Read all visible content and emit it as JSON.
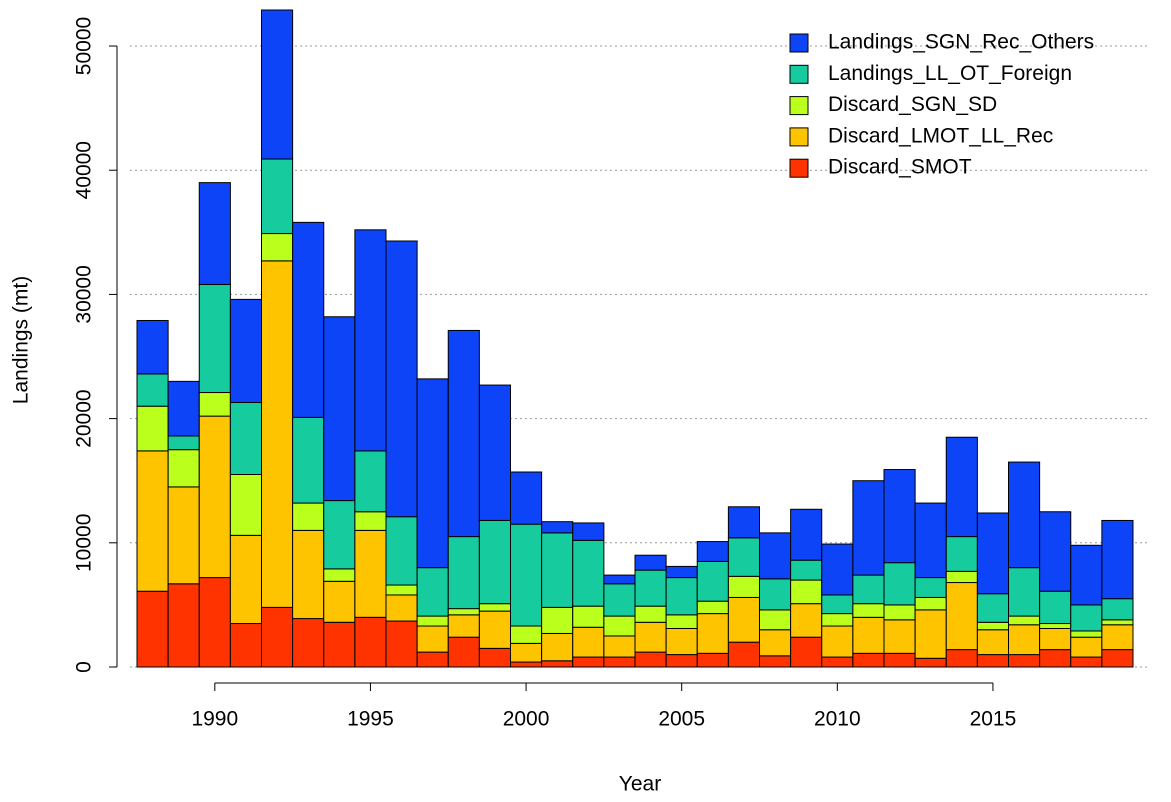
{
  "chart_data": {
    "type": "stacked_bar",
    "x_label": "Year",
    "y_label": "Landings (mt)",
    "x": [
      1988,
      1989,
      1990,
      1991,
      1992,
      1993,
      1994,
      1995,
      1996,
      1997,
      1998,
      1999,
      2000,
      2001,
      2002,
      2003,
      2004,
      2005,
      2006,
      2007,
      2008,
      2009,
      2010,
      2011,
      2012,
      2013,
      2014,
      2015,
      2016,
      2017,
      2018,
      2019
    ],
    "xlim": [
      1987.5,
      2019.5
    ],
    "xticks": [
      1990,
      1995,
      2000,
      2005,
      2010,
      2015
    ],
    "ylim": [
      0,
      52900
    ],
    "yticks": [
      0,
      10000,
      20000,
      30000,
      40000,
      50000
    ],
    "grid": true,
    "legend": "top-right",
    "series": [
      {
        "name": "Discard_SMOT",
        "color": "#ff3300",
        "values": [
          6100,
          6700,
          7200,
          3500,
          4800,
          3900,
          3600,
          4000,
          3700,
          1200,
          2400,
          1500,
          400,
          500,
          800,
          800,
          1200,
          1000,
          1100,
          2000,
          900,
          2400,
          800,
          1100,
          1100,
          700,
          1400,
          1000,
          1000,
          1400,
          800,
          1400
        ]
      },
      {
        "name": "Discard_LMOT_LL_Rec",
        "color": "#ffc400",
        "values": [
          11300,
          7800,
          13000,
          7100,
          27900,
          7100,
          3300,
          7000,
          2100,
          2100,
          1800,
          3000,
          1500,
          2200,
          2400,
          1700,
          2400,
          2100,
          3200,
          3600,
          2100,
          2700,
          2500,
          2900,
          2700,
          3900,
          5400,
          2000,
          2400,
          1700,
          1600,
          2000
        ]
      },
      {
        "name": "Discard_SGN_SD",
        "color": "#bbff1c",
        "values": [
          3600,
          3000,
          1900,
          4900,
          2200,
          2200,
          1000,
          1500,
          800,
          800,
          500,
          600,
          1400,
          2100,
          1700,
          1600,
          1300,
          1100,
          1000,
          1700,
          1600,
          1900,
          1000,
          1100,
          1200,
          1000,
          900,
          600,
          700,
          400,
          500,
          400
        ]
      },
      {
        "name": "Landings_LL_OT_Foreign",
        "color": "#16cc9e",
        "values": [
          2600,
          1100,
          8700,
          5800,
          6000,
          6900,
          5500,
          4900,
          5500,
          3900,
          5800,
          6700,
          8200,
          6000,
          5300,
          2600,
          2900,
          3000,
          3200,
          3100,
          2500,
          1600,
          1500,
          2300,
          3400,
          1600,
          2800,
          2300,
          3900,
          2600,
          2100,
          1700
        ]
      },
      {
        "name": "Landings_SGN_Rec_Others",
        "color": "#0d44f7",
        "values": [
          4300,
          4400,
          8200,
          8300,
          12000,
          15700,
          14800,
          17800,
          22200,
          15200,
          16600,
          10900,
          4200,
          900,
          1400,
          700,
          1200,
          900,
          1600,
          2500,
          3700,
          4100,
          4100,
          7600,
          7500,
          6000,
          8000,
          6500,
          8500,
          6400,
          4800,
          6300
        ]
      }
    ]
  }
}
